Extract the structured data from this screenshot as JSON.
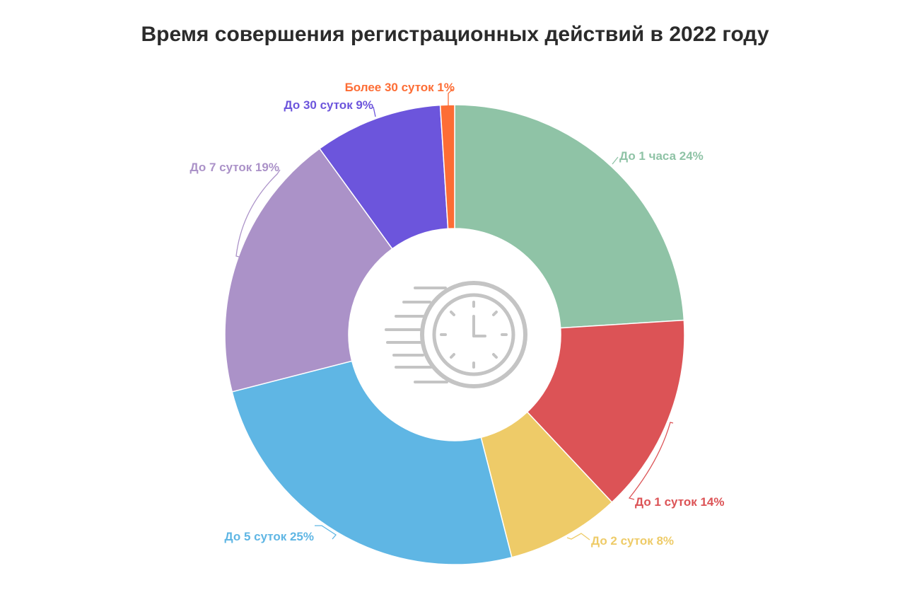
{
  "title": "Время совершения регистрационных действий в 2022 году",
  "chart_data": {
    "type": "pie",
    "variant": "donut",
    "title": "Время совершения регистрационных действий в 2022 году",
    "unit": "%",
    "center_icon": "stopwatch-icon",
    "slices": [
      {
        "label": "До 1 часа",
        "value": 24,
        "color": "#8fc3a6",
        "text": "До 1 часа 24%"
      },
      {
        "label": "До 1 суток",
        "value": 14,
        "color": "#dc5356",
        "text": "До 1 суток 14%"
      },
      {
        "label": "До 2 суток",
        "value": 8,
        "color": "#eecb68",
        "text": "До 2 суток 8%"
      },
      {
        "label": "До 5 суток",
        "value": 25,
        "color": "#5fb6e4",
        "text": "До 5 суток 25%"
      },
      {
        "label": "До 7 суток",
        "value": 19,
        "color": "#ab92c8",
        "text": "До 7 суток 19%"
      },
      {
        "label": "До 30 суток",
        "value": 9,
        "color": "#6c55dc",
        "text": "До 30 суток 9%"
      },
      {
        "label": "Более 30 суток",
        "value": 1,
        "color": "#fd6d35",
        "text": "Более 30 суток 1%"
      }
    ]
  }
}
